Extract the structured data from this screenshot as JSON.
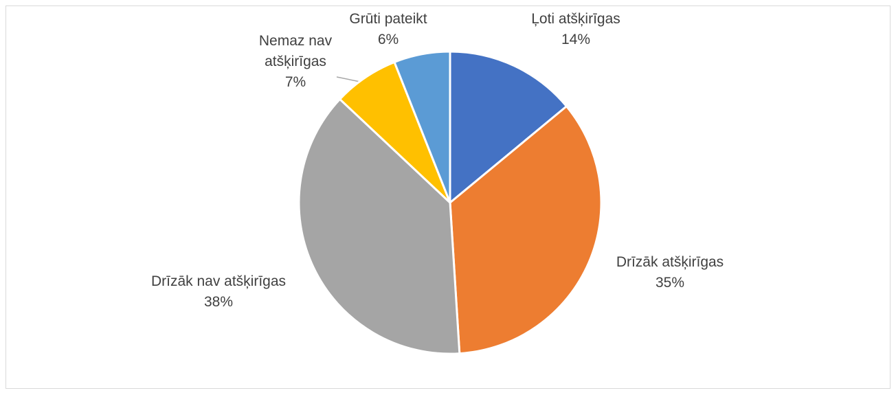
{
  "chart_data": {
    "type": "pie",
    "categories": [
      "Ļoti atšķirīgas",
      "Drīzāk atšķirīgas",
      "Drīzāk nav atšķirīgas",
      "Nemaz nav atšķirīgas",
      "Grūti pateikt"
    ],
    "values": [
      14,
      35,
      38,
      7,
      6
    ],
    "value_labels": [
      "14%",
      "35%",
      "38%",
      "7%",
      "6%"
    ],
    "colors": [
      "#4472c4",
      "#ed7d31",
      "#a5a5a5",
      "#ffc000",
      "#5b9bd5"
    ]
  }
}
